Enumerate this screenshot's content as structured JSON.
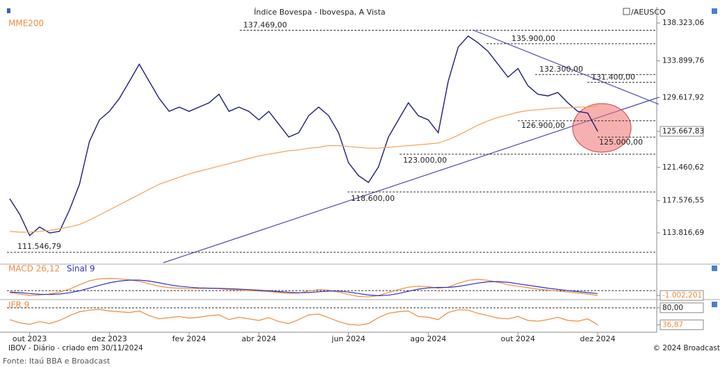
{
  "header": {
    "symbol": "/AEUSCO"
  },
  "footer": {
    "left": "IBOV - Diário - criado em 30/11/2024",
    "right": "© 2024 Broadcast",
    "source": "Fonte: Itaú BBA e Broadcast"
  },
  "chart_data": [
    {
      "type": "line",
      "title": "Índice Bovespa - Ibovespa, A Vista",
      "categories": [
        null,
        null,
        "out 2023",
        null,
        null,
        null,
        null,
        null,
        null,
        null,
        "dez 2023",
        null,
        null,
        null,
        null,
        null,
        null,
        null,
        "fev 2024",
        null,
        null,
        null,
        null,
        null,
        null,
        "abr 2024",
        null,
        null,
        null,
        null,
        null,
        null,
        null,
        null,
        "jun 2024",
        null,
        null,
        null,
        null,
        null,
        null,
        null,
        "ago 2024",
        null,
        null,
        null,
        null,
        null,
        null,
        null,
        null,
        "out 2024",
        null,
        null,
        null,
        null,
        null,
        null,
        null,
        "dez 2024"
      ],
      "series": [
        {
          "color": "#1c1c7a",
          "values": [
            117800,
            116000,
            113500,
            114500,
            113800,
            114000,
            116500,
            119500,
            124500,
            127000,
            128000,
            129500,
            131500,
            133500,
            131500,
            129500,
            128000,
            128500,
            128000,
            128500,
            129000,
            130000,
            128000,
            128500,
            128000,
            127000,
            128000,
            126500,
            125000,
            125500,
            127500,
            128500,
            127500,
            125500,
            122000,
            120500,
            119700,
            121500,
            125000,
            127000,
            129000,
            127500,
            127000,
            125500,
            131500,
            135500,
            136800,
            136000,
            135000,
            133500,
            132000,
            133000,
            131000,
            130000,
            129800,
            130200,
            129000,
            128000,
            127800,
            125667.83
          ]
        },
        {
          "name": "MME200",
          "color": "#f5a05a",
          "values": [
            114000,
            113900,
            113900,
            114000,
            114100,
            114300,
            114500,
            114800,
            115300,
            115900,
            116500,
            117100,
            117700,
            118300,
            118900,
            119500,
            119900,
            120300,
            120700,
            121000,
            121300,
            121600,
            121900,
            122200,
            122500,
            122800,
            123000,
            123200,
            123400,
            123500,
            123700,
            123800,
            124000,
            124000,
            123900,
            123800,
            123700,
            123700,
            123800,
            123900,
            124000,
            124100,
            124200,
            124300,
            124700,
            125200,
            125800,
            126400,
            126900,
            127300,
            127600,
            127900,
            128100,
            128200,
            128300,
            128400,
            128400,
            128500,
            128500,
            128600
          ]
        }
      ],
      "ylim": [
        110330,
        139540
      ],
      "yticks": [
        {
          "value": 138323.06,
          "label": "138.323,06"
        },
        {
          "value": 133899.76,
          "label": "133.899,76"
        },
        {
          "value": 129617.92,
          "label": "129.617,92"
        },
        {
          "value": 125667.83,
          "label": "125.667,83"
        },
        {
          "value": 121460.62,
          "label": "121.460,62"
        },
        {
          "value": 117576.55,
          "label": "117.576,55"
        },
        {
          "value": 113816.69,
          "label": "113.816,69"
        }
      ],
      "levels": [
        {
          "value": 137469,
          "label": "137.469,00"
        },
        {
          "value": 135900,
          "label": "135.900,00"
        },
        {
          "value": 132300,
          "label": "132.300,00"
        },
        {
          "value": 131400,
          "label": "131.400,00"
        },
        {
          "value": 126900,
          "label": "126.900,00"
        },
        {
          "value": 125000,
          "label": "125.000,00"
        },
        {
          "value": 123000,
          "label": "123.000,00"
        },
        {
          "value": 118600,
          "label": "118.600,00"
        },
        {
          "value": 111546.79,
          "label": "111.546,79"
        }
      ]
    },
    {
      "type": "line",
      "series": [
        {
          "name": "MACD 26,12",
          "color": "#f08a3c",
          "values": [
            -400,
            -700,
            -1000,
            -900,
            -700,
            -300,
            300,
            1200,
            2000,
            2400,
            2500,
            2400,
            2200,
            1900,
            1400,
            900,
            600,
            500,
            400,
            450,
            500,
            400,
            200,
            100,
            0,
            -100,
            -200,
            -400,
            -600,
            -500,
            -100,
            200,
            100,
            -300,
            -800,
            -1200,
            -1300,
            -1000,
            -400,
            200,
            700,
            900,
            800,
            500,
            700,
            1500,
            2100,
            2300,
            2100,
            1700,
            1200,
            900,
            600,
            300,
            100,
            -100,
            -300,
            -500,
            -700,
            -1002.201
          ]
        },
        {
          "name": "Sinal 9",
          "color": "#3030c0",
          "values": [
            -300,
            -400,
            -600,
            -750,
            -800,
            -700,
            -450,
            -50,
            500,
            1100,
            1600,
            1950,
            2150,
            2150,
            1950,
            1600,
            1200,
            900,
            700,
            550,
            500,
            470,
            400,
            300,
            200,
            80,
            -50,
            -200,
            -350,
            -450,
            -400,
            -250,
            -100,
            -100,
            -300,
            -600,
            -900,
            -1050,
            -950,
            -600,
            -150,
            300,
            550,
            650,
            650,
            850,
            1200,
            1550,
            1800,
            1850,
            1700,
            1400,
            1100,
            800,
            500,
            250,
            0,
            -200,
            -400,
            -600
          ]
        }
      ],
      "ylim": [
        -1700,
        5000
      ],
      "yticks": [
        {
          "value": -1002.201,
          "label": "-1.002,201"
        }
      ]
    },
    {
      "type": "line",
      "series": [
        {
          "name": "IFR 9",
          "color": "#f08a3c",
          "values": [
            50,
            42,
            38,
            45,
            40,
            48,
            60,
            70,
            74,
            76,
            72,
            70,
            68,
            72,
            60,
            52,
            55,
            58,
            54,
            56,
            60,
            62,
            50,
            56,
            52,
            48,
            55,
            45,
            40,
            50,
            62,
            64,
            55,
            45,
            38,
            36,
            40,
            55,
            66,
            70,
            72,
            58,
            56,
            50,
            68,
            75,
            74,
            66,
            60,
            54,
            52,
            58,
            48,
            46,
            50,
            56,
            48,
            46,
            52,
            36.87
          ]
        }
      ],
      "ylim": [
        25,
        85
      ],
      "yticks": [
        {
          "value": 80,
          "label": "80,00"
        },
        {
          "value": 36.87,
          "label": "36,87"
        }
      ]
    }
  ]
}
